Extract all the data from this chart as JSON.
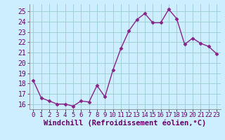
{
  "x": [
    0,
    1,
    2,
    3,
    4,
    5,
    6,
    7,
    8,
    9,
    10,
    11,
    12,
    13,
    14,
    15,
    16,
    17,
    18,
    19,
    20,
    21,
    22,
    23
  ],
  "y": [
    18.3,
    16.6,
    16.3,
    16.0,
    16.0,
    15.8,
    16.3,
    16.2,
    17.8,
    16.7,
    19.3,
    21.4,
    23.1,
    24.2,
    24.8,
    23.9,
    23.9,
    25.2,
    24.3,
    21.8,
    22.4,
    21.9,
    21.6,
    20.9
  ],
  "line_color": "#882288",
  "marker": "D",
  "marker_size": 2.5,
  "linewidth": 1.0,
  "bg_color": "#cceeff",
  "grid_color": "#99cccc",
  "xlabel": "Windchill (Refroidissement éolien,°C)",
  "xlabel_fontsize": 7.5,
  "yticks": [
    16,
    17,
    18,
    19,
    20,
    21,
    22,
    23,
    24,
    25
  ],
  "xtick_labels": [
    "0",
    "1",
    "2",
    "3",
    "4",
    "5",
    "6",
    "7",
    "8",
    "9",
    "10",
    "11",
    "12",
    "13",
    "14",
    "15",
    "16",
    "17",
    "18",
    "19",
    "20",
    "21",
    "22",
    "23"
  ],
  "ylim": [
    15.5,
    25.7
  ],
  "xlim": [
    -0.5,
    23.5
  ],
  "tick_fontsize": 7,
  "xlabel_fontfamily": "monospace"
}
